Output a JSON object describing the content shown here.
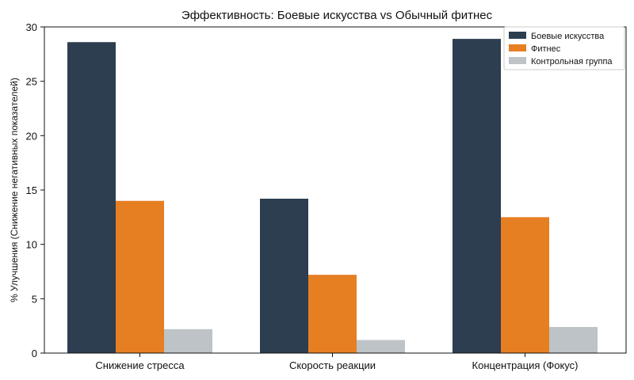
{
  "chart_data": {
    "type": "bar",
    "title": "Эффективность: Боевые искусства vs Обычный фитнес",
    "xlabel": "",
    "ylabel": "% Улучшения (Снижение негативных показателей)",
    "categories": [
      "Снижение стресса",
      "Скорость реакции",
      "Концентрация (Фокус)"
    ],
    "series": [
      {
        "name": "Боевые искусства",
        "color": "#2c3e50",
        "values": [
          28.6,
          14.2,
          28.9
        ]
      },
      {
        "name": "Фитнес",
        "color": "#e67e22",
        "values": [
          14.0,
          7.2,
          12.5
        ]
      },
      {
        "name": "Контрольная группа",
        "color": "#bdc3c7",
        "values": [
          2.2,
          1.2,
          2.4
        ]
      }
    ],
    "ylim": [
      0,
      30
    ],
    "yticks": [
      "0",
      "5",
      "10",
      "15",
      "20",
      "25",
      "30"
    ],
    "grid": false,
    "legend_position": "top-right"
  }
}
